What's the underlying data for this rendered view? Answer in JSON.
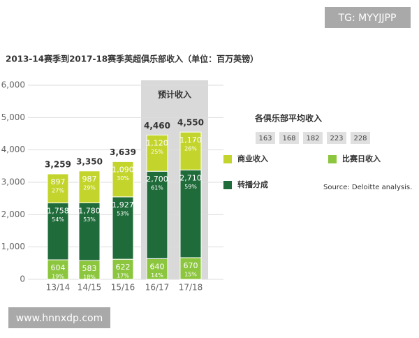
{
  "chart_data": {
    "type": "stacked_bar",
    "title": "2013-14赛季到2017-18赛季英超俱乐部收入（单位：百万英镑）",
    "categories": [
      "13/14",
      "14/15",
      "15/16",
      "16/17",
      "17/18"
    ],
    "series": [
      {
        "name": "比赛日收入",
        "color": "#8cc63e",
        "values": [
          604,
          583,
          622,
          640,
          670
        ],
        "percent_labels": [
          "19%",
          "18%",
          "17%",
          "14%",
          "15%"
        ]
      },
      {
        "name": "转播分成",
        "color": "#1f6b3a",
        "values": [
          1758,
          1780,
          1927,
          2700,
          2710
        ],
        "value_labels": [
          "1,758",
          "1,780",
          "1,927",
          "2,700",
          "2,710"
        ],
        "percent_labels": [
          "54%",
          "53%",
          "53%",
          "61%",
          "59%"
        ]
      },
      {
        "name": "商业收入",
        "color": "#c3d52c",
        "values": [
          897,
          987,
          1090,
          1120,
          1170
        ],
        "value_labels": [
          "897",
          "987",
          "1,090",
          "1,120",
          "1,170"
        ],
        "percent_labels": [
          "27%",
          "29%",
          "30%",
          "25%",
          "26%"
        ]
      }
    ],
    "totals": [
      3259,
      3350,
      3639,
      4460,
      4550
    ],
    "total_labels": [
      "3,259",
      "3,350",
      "3,639",
      "4,460",
      "4,550"
    ],
    "forecast_label": "预计收入",
    "average_per_club": {
      "title": "各俱乐部平均收入",
      "values": [
        163,
        168,
        182,
        223,
        228
      ]
    },
    "source": "Source: Deloitte analysis.",
    "ylim": [
      0,
      6000
    ],
    "yticks": [
      {
        "value": 0,
        "label": "0"
      },
      {
        "value": 1000,
        "label": "1,000"
      },
      {
        "value": 2000,
        "label": "2,000"
      },
      {
        "value": 3000,
        "label": "3,000"
      },
      {
        "value": 4000,
        "label": "4,000"
      },
      {
        "value": 5000,
        "label": "5,000"
      },
      {
        "value": 6000,
        "label": "6,000"
      }
    ],
    "grid": true
  },
  "watermarks": [
    "TG: MYYJJPP",
    "www.hnnxdp.com"
  ]
}
